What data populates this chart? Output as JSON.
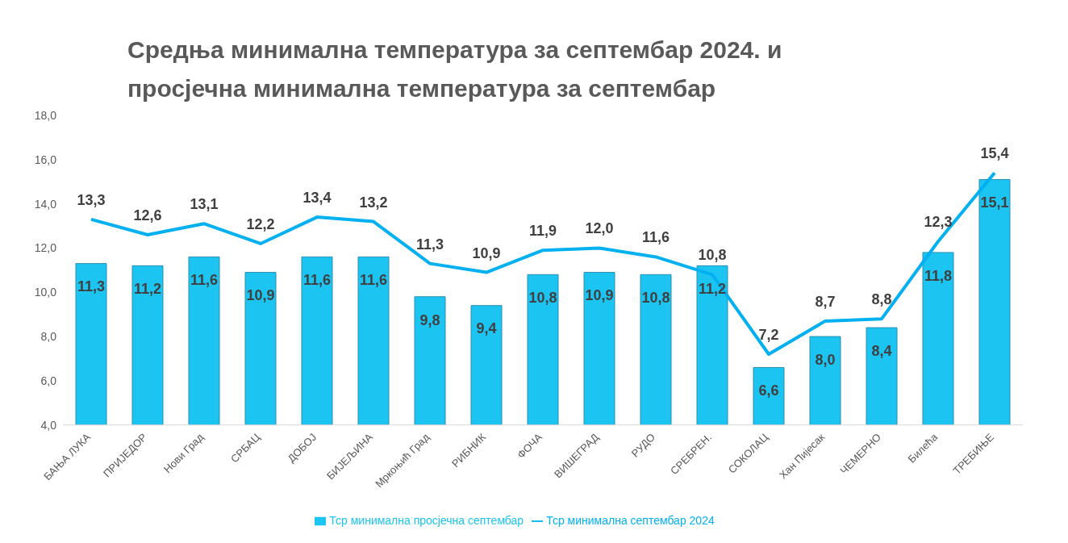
{
  "chart_data": {
    "type": "bar",
    "title": "Средња минимална температура за септембар 2024. и просјечна минимална температура за септембар",
    "categories": [
      "БАЊА ЛУКА",
      "ПРИЈЕДОР",
      "Нови Град",
      "СРБАЦ",
      "ДОБОЈ",
      "БИЈЕЉИНА",
      "Мркоњић Град",
      "РИБНИК",
      "ФОЧА",
      "ВИШЕГРАД",
      "РУДО",
      "СРЕБРЕН.",
      "СОКОЛАЦ",
      "Хан Пијесак",
      "ЧЕМЕРНО",
      "Билећа",
      "ТРЕБИЊЕ"
    ],
    "series": [
      {
        "name": "Тср минимална просјечна септембар",
        "color": "#1cc4f2",
        "values": [
          11.3,
          11.2,
          11.6,
          10.9,
          11.6,
          11.6,
          9.8,
          9.4,
          10.8,
          10.9,
          10.8,
          11.2,
          6.6,
          8.0,
          8.4,
          11.8,
          15.1
        ],
        "value_labels": [
          "11,3",
          "11,2",
          "11,6",
          "10,9",
          "11,6",
          "11,6",
          "9,8",
          "9,4",
          "10,8",
          "10,9",
          "10,8",
          "11,2",
          "6,6",
          "8,0",
          "8,4",
          "11,8",
          "15,1"
        ]
      },
      {
        "name": "Тср минимална септембар 2024",
        "type": "line",
        "color": "#00b0f0",
        "values": [
          13.3,
          12.6,
          13.1,
          12.2,
          13.4,
          13.2,
          11.3,
          10.9,
          11.9,
          12.0,
          11.6,
          10.8,
          7.2,
          8.7,
          8.8,
          12.3,
          15.4
        ],
        "value_labels": [
          "13,3",
          "12,6",
          "13,1",
          "12,2",
          "13,4",
          "13,2",
          "11,3",
          "10,9",
          "11,9",
          "12,0",
          "11,6",
          "10,8",
          "7,2",
          "8,7",
          "8,8",
          "12,3",
          "15,4"
        ]
      }
    ],
    "ylim": [
      4,
      18
    ],
    "yticks": [
      {
        "value": 4,
        "label": "4,0"
      },
      {
        "value": 6,
        "label": "6,0"
      },
      {
        "value": 8,
        "label": "8,0"
      },
      {
        "value": 10,
        "label": "10,0"
      },
      {
        "value": 12,
        "label": "12,0"
      },
      {
        "value": 14,
        "label": "14,0"
      },
      {
        "value": 16,
        "label": "16,0"
      },
      {
        "value": 18,
        "label": "18,0"
      }
    ],
    "legend": "bottom",
    "marker": "none"
  }
}
